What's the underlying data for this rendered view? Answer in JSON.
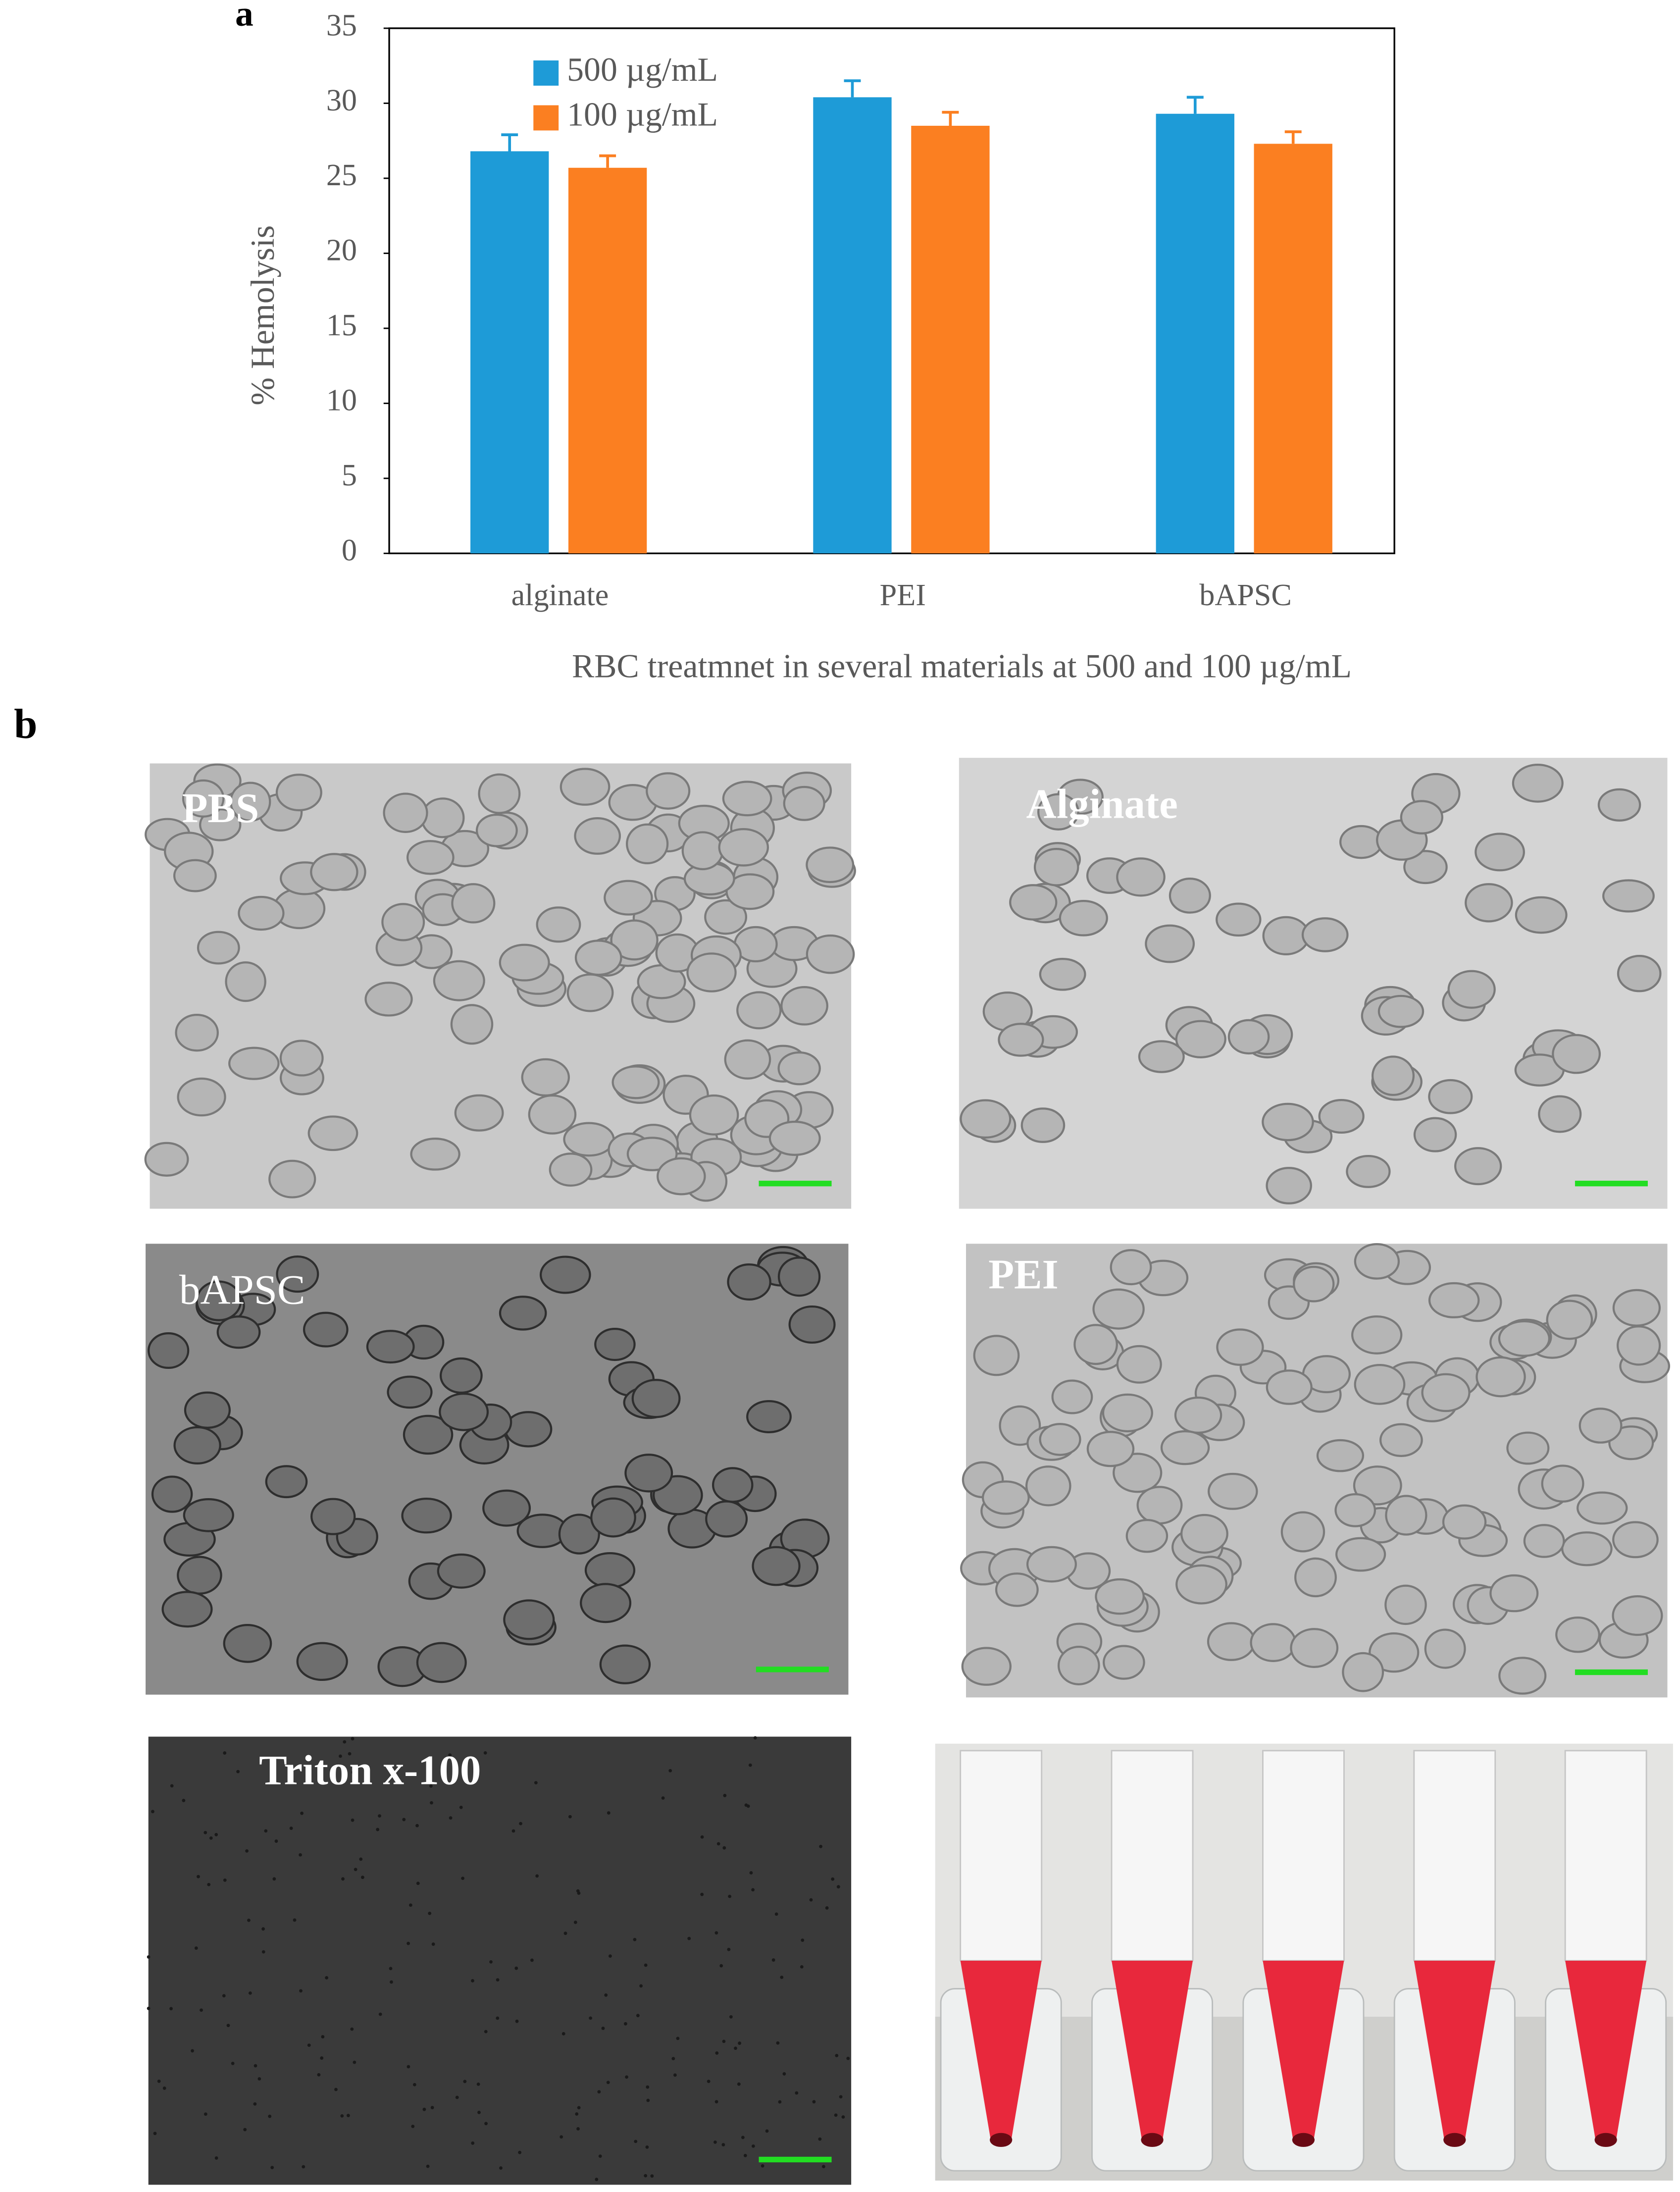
{
  "chart_data": {
    "type": "bar",
    "panel_label": "a",
    "categories": [
      "alginate",
      "PEI",
      "bAPSC"
    ],
    "series": [
      {
        "name": "500 µg/mL",
        "color": "#1e9bd7",
        "values": [
          26.8,
          30.4,
          29.3
        ],
        "errors": [
          1.1,
          1.1,
          1.1
        ]
      },
      {
        "name": "100 µg/mL",
        "color": "#fb7f21",
        "values": [
          25.7,
          28.5,
          27.3
        ],
        "errors": [
          0.8,
          0.9,
          0.8
        ]
      }
    ],
    "ylabel": "% Hemolysis",
    "xlabel": "RBC treatmnet in several materials at 500 and 100 µg/mL",
    "ylim": [
      0,
      35
    ],
    "yticks": [
      0,
      5,
      10,
      15,
      20,
      25,
      30,
      35
    ]
  },
  "figure_b": {
    "panel_label": "b",
    "micrographs": [
      "PBS",
      "Alginate",
      "bAPSC",
      "PEI",
      "Triton x-100"
    ]
  }
}
